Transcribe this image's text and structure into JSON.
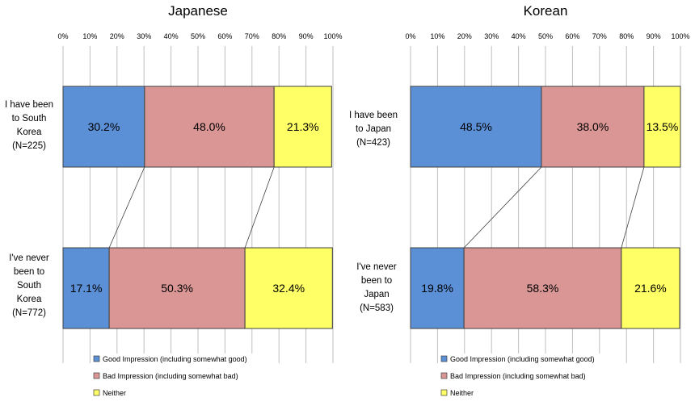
{
  "chart_data": [
    {
      "type": "bar",
      "orientation": "horizontal-stacked-100",
      "title": "Japanese",
      "x_ticks": [
        "0%",
        "10%",
        "20%",
        "30%",
        "40%",
        "50%",
        "60%",
        "70%",
        "80%",
        "90%",
        "100%"
      ],
      "xlim": [
        0,
        100
      ],
      "grid": true,
      "categories": [
        {
          "label_lines": [
            "I have been",
            "to South",
            "Korea",
            "(N=225)"
          ]
        },
        {
          "label_lines": [
            "I've never",
            "been to",
            "South",
            "Korea",
            "(N=772)"
          ]
        }
      ],
      "series": [
        {
          "name": "Good Impression (including somewhat good)",
          "color": "#5B8FD6",
          "values": [
            30.2,
            17.1
          ],
          "labels": [
            "30.2%",
            "17.1%"
          ]
        },
        {
          "name": "Bad Impression (including somewhat bad)",
          "color": "#D99694",
          "values": [
            48.0,
            50.3
          ],
          "labels": [
            "48.0%",
            "50.3%"
          ]
        },
        {
          "name": "Neither",
          "color": "#FFFF66",
          "values": [
            21.3,
            32.4
          ],
          "labels": [
            "21.3%",
            "32.4%"
          ]
        }
      ],
      "legend_position": "bottom"
    },
    {
      "type": "bar",
      "orientation": "horizontal-stacked-100",
      "title": "Korean",
      "x_ticks": [
        "0%",
        "10%",
        "20%",
        "30%",
        "40%",
        "50%",
        "60%",
        "70%",
        "80%",
        "90%",
        "100%"
      ],
      "xlim": [
        0,
        100
      ],
      "grid": true,
      "categories": [
        {
          "label_lines": [
            "I have been",
            "to Japan",
            "(N=423)"
          ]
        },
        {
          "label_lines": [
            "I've never",
            "been to",
            "Japan",
            "(N=583)"
          ]
        }
      ],
      "series": [
        {
          "name": "Good Impression (including somewhat good)",
          "color": "#5B8FD6",
          "values": [
            48.5,
            19.8
          ],
          "labels": [
            "48.5%",
            "19.8%"
          ]
        },
        {
          "name": "Bad Impression (including somewhat bad)",
          "color": "#D99694",
          "values": [
            38.0,
            58.3
          ],
          "labels": [
            "38.0%",
            "58.3%"
          ]
        },
        {
          "name": "Neither",
          "color": "#FFFF66",
          "values": [
            13.5,
            21.6
          ],
          "labels": [
            "13.5%",
            "21.6%"
          ]
        }
      ],
      "legend_position": "bottom"
    }
  ]
}
